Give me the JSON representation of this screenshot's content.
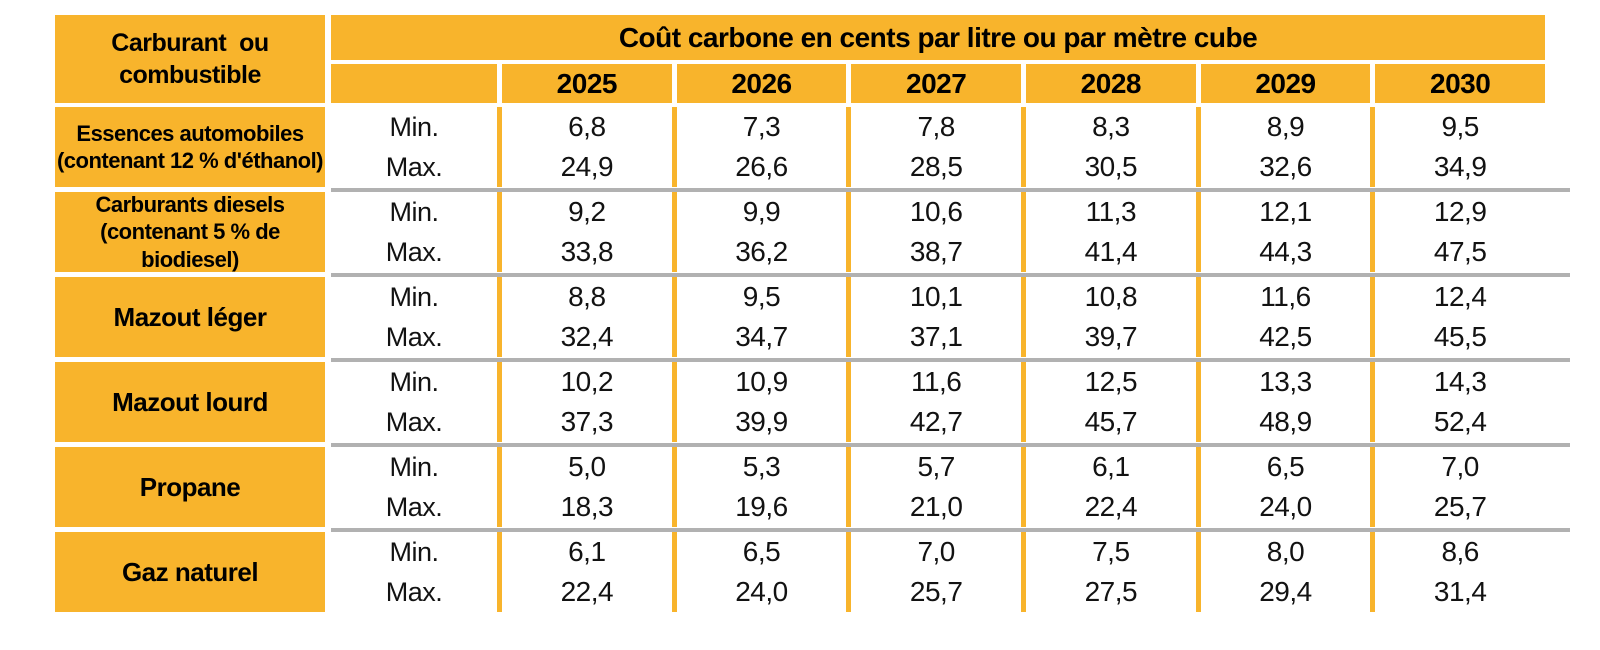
{
  "table": {
    "fuel_header_line1": "Carburant  ou",
    "fuel_header_line2": "combustible",
    "main_header": "Coût carbone en cents par litre ou par mètre cube",
    "years": [
      "2025",
      "2026",
      "2027",
      "2028",
      "2029",
      "2030"
    ],
    "min_label": "Min.",
    "max_label": "Max.",
    "rows": [
      {
        "fuel": "Essences automobiles",
        "note": "(contenant 12 % d'éthanol)",
        "min": [
          "6,8",
          "7,3",
          "7,8",
          "8,3",
          "8,9",
          "9,5"
        ],
        "max": [
          "24,9",
          "26,6",
          "28,5",
          "30,5",
          "32,6",
          "34,9"
        ]
      },
      {
        "fuel": "Carburants diesels",
        "note": "(contenant 5 % de biodiesel)",
        "min": [
          "9,2",
          "9,9",
          "10,6",
          "11,3",
          "12,1",
          "12,9"
        ],
        "max": [
          "33,8",
          "36,2",
          "38,7",
          "41,4",
          "44,3",
          "47,5"
        ]
      },
      {
        "fuel": "Mazout léger",
        "note": "",
        "min": [
          "8,8",
          "9,5",
          "10,1",
          "10,8",
          "11,6",
          "12,4"
        ],
        "max": [
          "32,4",
          "34,7",
          "37,1",
          "39,7",
          "42,5",
          "45,5"
        ]
      },
      {
        "fuel": "Mazout lourd",
        "note": "",
        "min": [
          "10,2",
          "10,9",
          "11,6",
          "12,5",
          "13,3",
          "14,3"
        ],
        "max": [
          "37,3",
          "39,9",
          "42,7",
          "45,7",
          "48,9",
          "52,4"
        ]
      },
      {
        "fuel": "Propane",
        "note": "",
        "min": [
          "5,0",
          "5,3",
          "5,7",
          "6,1",
          "6,5",
          "7,0"
        ],
        "max": [
          "18,3",
          "19,6",
          "21,0",
          "22,4",
          "24,0",
          "25,7"
        ]
      },
      {
        "fuel": "Gaz naturel",
        "note": "",
        "min": [
          "6,1",
          "6,5",
          "7,0",
          "7,5",
          "8,0",
          "8,6"
        ],
        "max": [
          "22,4",
          "24,0",
          "25,7",
          "27,5",
          "29,4",
          "31,4"
        ]
      }
    ],
    "colors": {
      "accent": "#F8B42C",
      "separator": "#B1B1B1",
      "text": "#000000"
    }
  },
  "chart_data": {
    "type": "table",
    "title": "Coût carbone en cents par litre ou par mètre cube",
    "row_header": "Carburant ou combustible",
    "columns": [
      "2025",
      "2026",
      "2027",
      "2028",
      "2029",
      "2030"
    ],
    "rows": [
      {
        "label": "Essences automobiles (contenant 12 % d'éthanol)",
        "min": [
          6.8,
          7.3,
          7.8,
          8.3,
          8.9,
          9.5
        ],
        "max": [
          24.9,
          26.6,
          28.5,
          30.5,
          32.6,
          34.9
        ]
      },
      {
        "label": "Carburants diesels (contenant 5 % de biodiesel)",
        "min": [
          9.2,
          9.9,
          10.6,
          11.3,
          12.1,
          12.9
        ],
        "max": [
          33.8,
          36.2,
          38.7,
          41.4,
          44.3,
          47.5
        ]
      },
      {
        "label": "Mazout léger",
        "min": [
          8.8,
          9.5,
          10.1,
          10.8,
          11.6,
          12.4
        ],
        "max": [
          32.4,
          34.7,
          37.1,
          39.7,
          42.5,
          45.5
        ]
      },
      {
        "label": "Mazout lourd",
        "min": [
          10.2,
          10.9,
          11.6,
          12.5,
          13.3,
          14.3
        ],
        "max": [
          37.3,
          39.9,
          42.7,
          45.7,
          48.9,
          52.4
        ]
      },
      {
        "label": "Propane",
        "min": [
          5.0,
          5.3,
          5.7,
          6.1,
          6.5,
          7.0
        ],
        "max": [
          18.3,
          19.6,
          21.0,
          22.4,
          24.0,
          25.7
        ]
      },
      {
        "label": "Gaz naturel",
        "min": [
          6.1,
          6.5,
          7.0,
          7.5,
          8.0,
          8.6
        ],
        "max": [
          22.4,
          24.0,
          25.7,
          27.5,
          29.4,
          31.4
        ]
      }
    ]
  }
}
